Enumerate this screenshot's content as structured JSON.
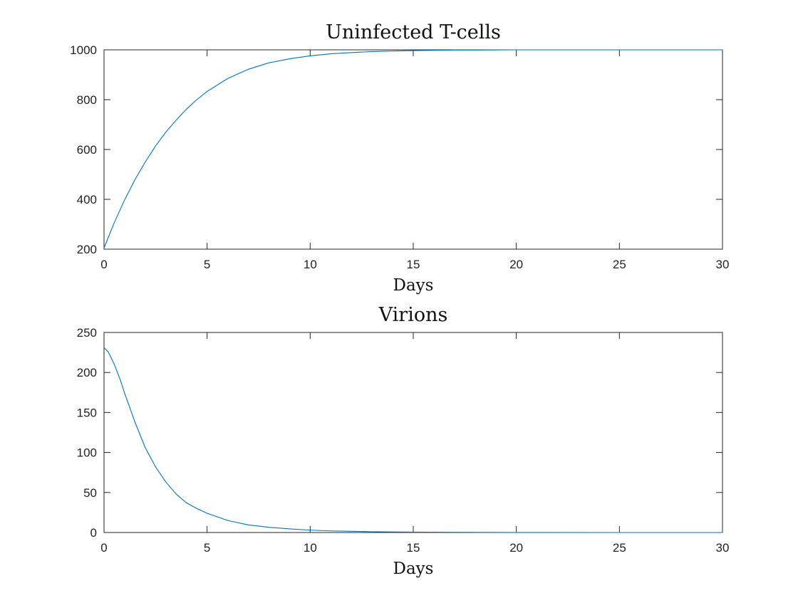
{
  "chart_data": [
    {
      "type": "line",
      "title": "Uninfected T-cells",
      "xlabel": "Days",
      "ylabel": "",
      "xlim": [
        0,
        30
      ],
      "ylim": [
        200,
        1000
      ],
      "xticks": [
        0,
        5,
        10,
        15,
        20,
        25,
        30
      ],
      "yticks": [
        200,
        400,
        600,
        800,
        1000
      ],
      "grid": false,
      "color": "#0072BD",
      "series": [
        {
          "x": [
            0,
            0.5,
            1,
            1.5,
            2,
            2.5,
            3,
            3.5,
            4,
            4.5,
            5,
            6,
            7,
            8,
            9,
            10,
            11,
            12,
            13,
            14,
            15,
            16,
            17,
            18,
            20,
            22,
            25,
            30
          ],
          "values": [
            205,
            307,
            398,
            479,
            550,
            614,
            670,
            718,
            762,
            800,
            833,
            885,
            922,
            948,
            964,
            976,
            984,
            989,
            993,
            995,
            997,
            998,
            999,
            999,
            1000,
            1000,
            1000,
            1000
          ]
        }
      ]
    },
    {
      "type": "line",
      "title": "Virions",
      "xlabel": "Days",
      "ylabel": "",
      "xlim": [
        0,
        30
      ],
      "ylim": [
        0,
        250
      ],
      "xticks": [
        0,
        5,
        10,
        15,
        20,
        25,
        30
      ],
      "yticks": [
        0,
        50,
        100,
        150,
        200,
        250
      ],
      "grid": false,
      "color": "#0072BD",
      "series": [
        {
          "x": [
            0,
            0.2,
            0.5,
            0.8,
            1,
            1.5,
            2,
            2.5,
            3,
            3.5,
            4,
            4.5,
            5,
            6,
            7,
            8,
            9,
            10,
            11,
            12,
            13,
            14,
            15,
            17,
            20,
            25,
            30
          ],
          "values": [
            231,
            226,
            210,
            190,
            174,
            138,
            106,
            82,
            63,
            48,
            37,
            30,
            24,
            15,
            9.5,
            6.5,
            4.5,
            3,
            2,
            1.5,
            1,
            0.7,
            0.5,
            0.3,
            0.1,
            0,
            0
          ]
        }
      ]
    }
  ]
}
